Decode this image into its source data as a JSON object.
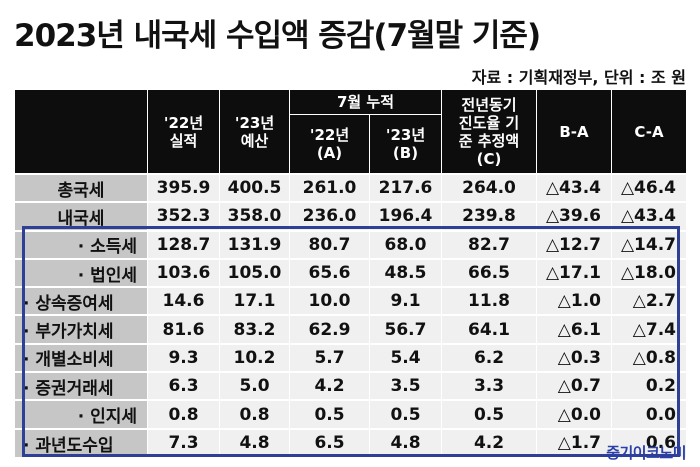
{
  "title": "2023년 내국세 수입액 증감(7월말 기준)",
  "source": "자료 : 기획재정부, 단위 : 조 원",
  "header": {
    "col_22_actual": "'22년\n실적",
    "col_23_budget": "'23년\n예산",
    "group_july": "7월 누적",
    "col_22_a": "'22년\n(A)",
    "col_23_b": "'23년\n(B)",
    "col_c": "전년동기\n진도율 기\n준 추정액\n(C)",
    "col_b_minus_a": "B-A",
    "col_c_minus_a": "C-A"
  },
  "rows": [
    {
      "label": "총국세",
      "v": [
        "395.9",
        "400.5",
        "261.0",
        "217.6",
        "264.0",
        "△43.4",
        "△46.4"
      ]
    },
    {
      "label": "내국세",
      "v": [
        "352.3",
        "358.0",
        "236.0",
        "196.4",
        "239.8",
        "△39.6",
        "△43.4"
      ]
    },
    {
      "label": "· 소득세",
      "v": [
        "128.7",
        "131.9",
        "80.7",
        "68.0",
        "82.7",
        "△12.7",
        "△14.7"
      ]
    },
    {
      "label": "· 법인세",
      "v": [
        "103.6",
        "105.0",
        "65.6",
        "48.5",
        "66.5",
        "△17.1",
        "△18.0"
      ]
    },
    {
      "label": "· 상속증여세",
      "v": [
        "14.6",
        "17.1",
        "10.0",
        "9.1",
        "11.8",
        "△1.0",
        "△2.7"
      ]
    },
    {
      "label": "· 부가가치세",
      "v": [
        "81.6",
        "83.2",
        "62.9",
        "56.7",
        "64.1",
        "△6.1",
        "△7.4"
      ]
    },
    {
      "label": "· 개별소비세",
      "v": [
        "9.3",
        "10.2",
        "5.7",
        "5.4",
        "6.2",
        "△0.3",
        "△0.8"
      ]
    },
    {
      "label": "· 증권거래세",
      "v": [
        "6.3",
        "5.0",
        "4.2",
        "3.5",
        "3.3",
        "△0.7",
        "0.2"
      ]
    },
    {
      "label": "· 인지세",
      "v": [
        "0.8",
        "0.8",
        "0.5",
        "0.5",
        "0.5",
        "△0.0",
        "0.0"
      ]
    },
    {
      "label": "· 과년도수입",
      "v": [
        "7.3",
        "4.8",
        "6.5",
        "4.8",
        "4.2",
        "△1.7",
        "0.6"
      ]
    }
  ],
  "watermark": "중기이코노미",
  "colors": {
    "header_bg": "#0d0d0d",
    "label_bg": "#c6c6c6",
    "cell_bg": "#f0f0f0",
    "highlight_border": "#2f3f95",
    "watermark": "#2a3fa8"
  }
}
